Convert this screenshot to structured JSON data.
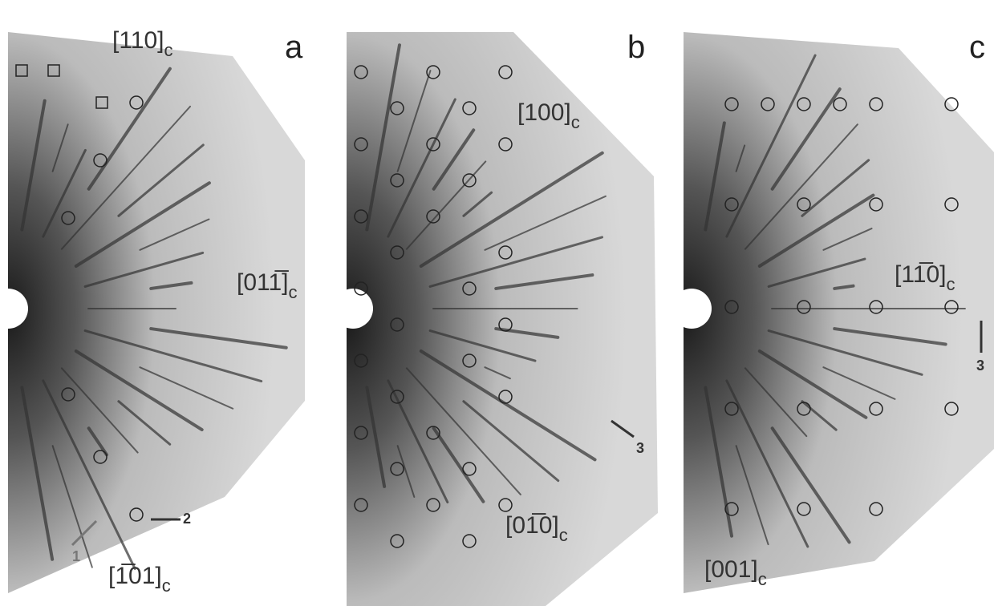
{
  "panels": [
    {
      "label": "a",
      "annotations": [
        {
          "text": "[110]",
          "sub": "c"
        },
        {
          "text": "[011̅]",
          "sub": "c"
        },
        {
          "text": "[1̅01]",
          "sub": "c"
        }
      ],
      "arrows": [
        "1",
        "2"
      ]
    },
    {
      "label": "b",
      "annotations": [
        {
          "text": "[100]",
          "sub": "c"
        },
        {
          "text": "[01̅0]",
          "sub": "c"
        }
      ],
      "arrows": [
        "3"
      ]
    },
    {
      "label": "c",
      "annotations": [
        {
          "text": "[11̅0]",
          "sub": "c"
        },
        {
          "text": "[001]",
          "sub": "c"
        }
      ],
      "arrows": [
        "3"
      ]
    }
  ]
}
